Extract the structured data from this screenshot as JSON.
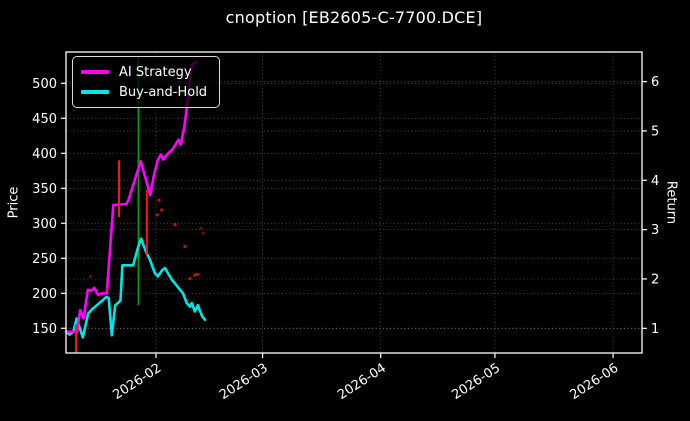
{
  "title": "cnoption [EB2605-C-7700.DCE]",
  "colors": {
    "background": "#000000",
    "text": "#ffffff",
    "spine": "#ffffff",
    "grid": "rgba(215,215,215,0.40)",
    "ai_strategy": "#ff00ff",
    "buy_and_hold": "#00e6e6",
    "signal_green": "#00a000",
    "signal_red": "#ff1414",
    "scatter_red": "#c81414"
  },
  "legend": {
    "items": [
      {
        "label": "AI Strategy",
        "color": "#ff00ff"
      },
      {
        "label": "Buy-and-Hold",
        "color": "#00e6e6"
      }
    ]
  },
  "chart_data": {
    "type": "line",
    "title": "cnoption [EB2605-C-7700.DCE]",
    "grid": true,
    "legend_position": "upper left",
    "x_axis": {
      "unit": "days since 2026-01-01",
      "range": [
        7.38,
        158.6
      ],
      "ticks": [
        {
          "label": "2026-02",
          "day": 31
        },
        {
          "label": "2026-03",
          "day": 59
        },
        {
          "label": "2026-04",
          "day": 90
        },
        {
          "label": "2026-05",
          "day": 120
        },
        {
          "label": "2026-06",
          "day": 151
        }
      ],
      "tick_rotation_deg": 33
    },
    "left_axis": {
      "label": "Price",
      "ticks": [
        150,
        200,
        250,
        300,
        350,
        400,
        450,
        500
      ],
      "range": [
        114.7,
        544.7
      ]
    },
    "right_axis": {
      "label": "Return",
      "ticks": [
        1,
        2,
        3,
        4,
        5,
        6
      ],
      "range": [
        0.5,
        6.6
      ]
    },
    "series": [
      {
        "name": "AI Strategy",
        "axis": "return",
        "color": "#ff00ff",
        "width": 2.6,
        "points": [
          [
            7.4,
            0.93
          ],
          [
            10.3,
            0.93
          ],
          [
            11.1,
            1.37
          ],
          [
            12.0,
            1.2
          ],
          [
            13.1,
            1.78
          ],
          [
            14.0,
            1.76
          ],
          [
            14.8,
            1.82
          ],
          [
            15.8,
            1.68
          ],
          [
            16.8,
            1.71
          ],
          [
            18.1,
            1.71
          ],
          [
            19.8,
            3.5
          ],
          [
            23.2,
            3.52
          ],
          [
            23.8,
            3.6
          ],
          [
            27.0,
            4.39
          ],
          [
            29.5,
            3.7
          ],
          [
            30.4,
            4.08
          ],
          [
            31.5,
            4.42
          ],
          [
            32.3,
            4.52
          ],
          [
            32.9,
            4.42
          ],
          [
            33.7,
            4.5
          ],
          [
            34.5,
            4.57
          ],
          [
            35.3,
            4.62
          ],
          [
            36.1,
            4.72
          ],
          [
            36.9,
            4.82
          ],
          [
            37.5,
            4.72
          ],
          [
            38.3,
            5.02
          ],
          [
            39.0,
            5.4
          ],
          [
            39.6,
            5.85
          ],
          [
            40.1,
            6.2
          ],
          [
            40.7,
            6.36
          ],
          [
            41.8,
            6.4
          ]
        ]
      },
      {
        "name": "Buy-and-Hold",
        "axis": "price",
        "color": "#00e6e6",
        "width": 2.6,
        "points": [
          [
            7.4,
            145
          ],
          [
            8.3,
            141
          ],
          [
            9.3,
            145
          ],
          [
            10.2,
            164
          ],
          [
            11.8,
            137
          ],
          [
            13.2,
            171
          ],
          [
            14.2,
            177
          ],
          [
            15.5,
            183
          ],
          [
            17.0,
            190
          ],
          [
            18.0,
            195
          ],
          [
            18.6,
            193
          ],
          [
            19.4,
            140
          ],
          [
            20.3,
            183
          ],
          [
            21.0,
            186
          ],
          [
            21.7,
            190
          ],
          [
            22.2,
            240
          ],
          [
            25.0,
            240
          ],
          [
            26.3,
            266
          ],
          [
            27.1,
            278
          ],
          [
            28.4,
            259
          ],
          [
            29.4,
            248
          ],
          [
            30.7,
            229
          ],
          [
            31.5,
            224
          ],
          [
            32.6,
            233
          ],
          [
            33.4,
            236
          ],
          [
            34.1,
            229
          ],
          [
            35.2,
            219
          ],
          [
            36.0,
            214
          ],
          [
            37.3,
            205
          ],
          [
            38.1,
            200
          ],
          [
            39.1,
            186
          ],
          [
            39.9,
            181
          ],
          [
            40.4,
            186
          ],
          [
            41.2,
            174
          ],
          [
            42.0,
            183
          ],
          [
            43.1,
            167
          ],
          [
            43.9,
            162
          ]
        ]
      }
    ],
    "event_lines": [
      {
        "day": 10.0,
        "price_from": 114,
        "price_to": 155,
        "color": "#ff1414",
        "layer": "above",
        "width": 2
      },
      {
        "day": 21.3,
        "price_from": 309,
        "price_to": 390,
        "color": "#ff1414",
        "layer": "above",
        "width": 2
      },
      {
        "day": 26.4,
        "price_from": 183,
        "price_to": 539,
        "color": "#00a000",
        "layer": "below",
        "width": 1.8
      },
      {
        "day": 28.6,
        "price_from": 255,
        "price_to": 348,
        "color": "#ff1414",
        "layer": "above",
        "width": 2
      }
    ],
    "scatter": {
      "name": "signal-dots",
      "color": "#c81414",
      "radius": 1.7,
      "points": [
        [
          31.3,
          312,
          0.9
        ],
        [
          31.8,
          333,
          0.9
        ],
        [
          32.5,
          319,
          0.9
        ],
        [
          36.0,
          298,
          0.9
        ],
        [
          38.6,
          267,
          0.9
        ],
        [
          39.9,
          221,
          0.9
        ],
        [
          41.2,
          226,
          0.9
        ],
        [
          41.9,
          227,
          0.9
        ],
        [
          13.8,
          224,
          0.5
        ],
        [
          18.3,
          206,
          0.5
        ],
        [
          42.8,
          293,
          0.5
        ],
        [
          43.4,
          286,
          0.5
        ]
      ]
    }
  }
}
